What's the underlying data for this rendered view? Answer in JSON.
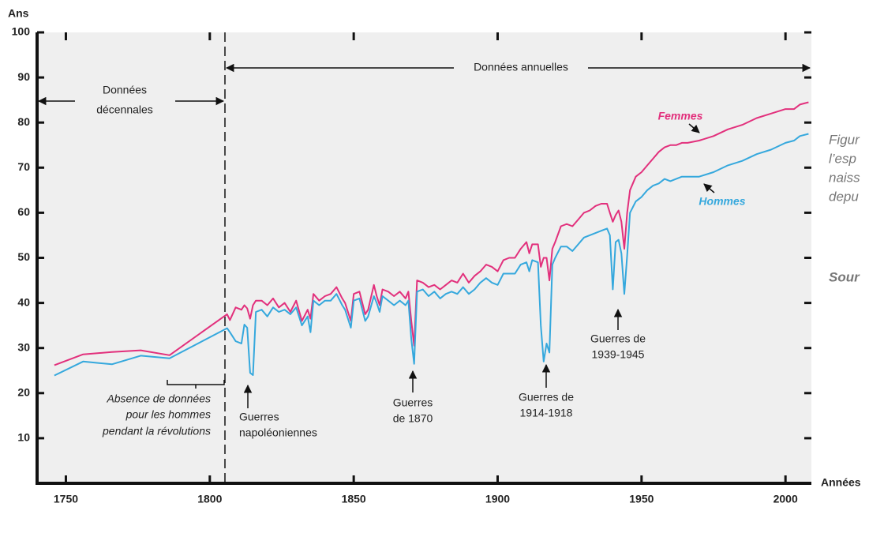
{
  "chart_data": {
    "type": "line",
    "y_label": "Ans",
    "x_label": "Années",
    "xlim": [
      1740,
      2009
    ],
    "ylim": [
      0,
      100
    ],
    "xticks": [
      1750,
      1800,
      1850,
      1900,
      1950,
      2000
    ],
    "yticks": [
      10,
      20,
      30,
      40,
      50,
      60,
      70,
      80,
      90,
      100
    ],
    "grid": false,
    "x": [
      1746,
      1756,
      1766,
      1776,
      1786,
      1806,
      1807,
      1809,
      1811,
      1812,
      1813,
      1814,
      1815,
      1816,
      1818,
      1820,
      1822,
      1824,
      1826,
      1828,
      1830,
      1832,
      1834,
      1835,
      1836,
      1838,
      1840,
      1842,
      1844,
      1846,
      1847,
      1849,
      1850,
      1852,
      1854,
      1855,
      1857,
      1858,
      1859,
      1860,
      1862,
      1864,
      1866,
      1868,
      1869,
      1870,
      1871,
      1872,
      1874,
      1876,
      1878,
      1880,
      1882,
      1884,
      1886,
      1888,
      1890,
      1892,
      1894,
      1896,
      1898,
      1900,
      1902,
      1904,
      1906,
      1908,
      1910,
      1911,
      1912,
      1914,
      1915,
      1916,
      1917,
      1918,
      1919,
      1920,
      1922,
      1924,
      1926,
      1928,
      1930,
      1932,
      1934,
      1936,
      1938,
      1939,
      1940,
      1941,
      1942,
      1943,
      1944,
      1945,
      1946,
      1948,
      1950,
      1952,
      1954,
      1956,
      1958,
      1960,
      1962,
      1964,
      1966,
      1970,
      1975,
      1980,
      1985,
      1990,
      1995,
      2000,
      2003,
      2005,
      2008
    ],
    "series": [
      {
        "name": "Femmes",
        "color": "#e2307c",
        "values": [
          26.2,
          28.6,
          29.1,
          29.5,
          28.4,
          37.5,
          36.2,
          39.0,
          38.5,
          39.5,
          38.8,
          36.5,
          39.5,
          40.5,
          40.5,
          39.5,
          41.0,
          39.0,
          40.0,
          38.0,
          40.5,
          36.0,
          38.5,
          36.5,
          42.0,
          40.5,
          41.5,
          42.0,
          43.5,
          41.0,
          40.0,
          36.0,
          42.0,
          42.5,
          37.5,
          38.5,
          44.0,
          41.5,
          39.5,
          43.0,
          42.5,
          41.5,
          42.5,
          41.0,
          42.5,
          36.0,
          30.5,
          45.0,
          44.5,
          43.5,
          44.0,
          43.0,
          44.0,
          45.0,
          44.5,
          46.5,
          44.5,
          46.0,
          47.0,
          48.5,
          48.0,
          47.0,
          49.5,
          50.0,
          50.0,
          52.0,
          53.5,
          51.0,
          53.0,
          53.0,
          48.0,
          50.0,
          50.0,
          45.0,
          52.0,
          53.5,
          57.0,
          57.5,
          57.0,
          58.5,
          60.0,
          60.5,
          61.5,
          62.0,
          62.0,
          60.0,
          58.0,
          59.5,
          60.5,
          58.0,
          52.0,
          60.0,
          65.0,
          68.0,
          69.0,
          70.5,
          72.0,
          73.5,
          74.5,
          75.0,
          75.0,
          75.5,
          75.5,
          76.0,
          77.0,
          78.5,
          79.5,
          81.0,
          82.0,
          83.0,
          83.0,
          84.0,
          84.5
        ]
      },
      {
        "name": "Hommes",
        "color": "#35a8dd",
        "values": [
          23.9,
          27.0,
          26.4,
          28.3,
          27.7,
          34.4,
          33.5,
          31.5,
          31.0,
          35.2,
          34.5,
          24.5,
          24.0,
          38.0,
          38.5,
          37.0,
          39.0,
          38.0,
          38.5,
          37.5,
          39.0,
          35.0,
          37.0,
          33.5,
          40.5,
          39.5,
          40.5,
          40.5,
          42.0,
          39.5,
          38.5,
          34.5,
          40.5,
          41.0,
          36.0,
          37.0,
          41.5,
          40.0,
          38.0,
          41.5,
          40.5,
          39.5,
          40.5,
          39.5,
          40.5,
          32.0,
          26.5,
          42.5,
          43.0,
          41.5,
          42.5,
          41.0,
          42.0,
          42.5,
          42.0,
          43.5,
          42.0,
          43.0,
          44.5,
          45.5,
          44.5,
          44.0,
          46.5,
          46.5,
          46.5,
          48.5,
          49.0,
          47.0,
          49.5,
          49.0,
          35.0,
          27.0,
          31.0,
          29.0,
          48.5,
          50.0,
          52.5,
          52.5,
          51.5,
          53.0,
          54.5,
          55.0,
          55.5,
          56.0,
          56.5,
          55.0,
          43.0,
          53.5,
          54.0,
          51.0,
          42.0,
          50.5,
          60.0,
          62.5,
          63.5,
          65.0,
          66.0,
          66.5,
          67.5,
          67.0,
          67.5,
          68.0,
          68.0,
          68.0,
          69.0,
          70.5,
          71.5,
          73.0,
          74.0,
          75.5,
          76.0,
          77.0,
          77.5
        ]
      }
    ],
    "annotations": {
      "decennial": [
        "Données",
        "décennales"
      ],
      "annual": "Données annuelles",
      "missing": [
        "Absence de données",
        "pour les hommes",
        "pendant la révolutions"
      ],
      "napoleon": [
        "Guerres",
        "napoléoniennes"
      ],
      "war1870": [
        "Guerres",
        "de 1870"
      ],
      "war1914": [
        "Guerres de",
        "1914-1918"
      ],
      "war1939": [
        "Guerres de",
        "1939-1945"
      ]
    }
  },
  "side_text": [
    "Figur",
    "l’esp",
    "naiss",
    "depu"
  ],
  "source_fragment": "Sour"
}
